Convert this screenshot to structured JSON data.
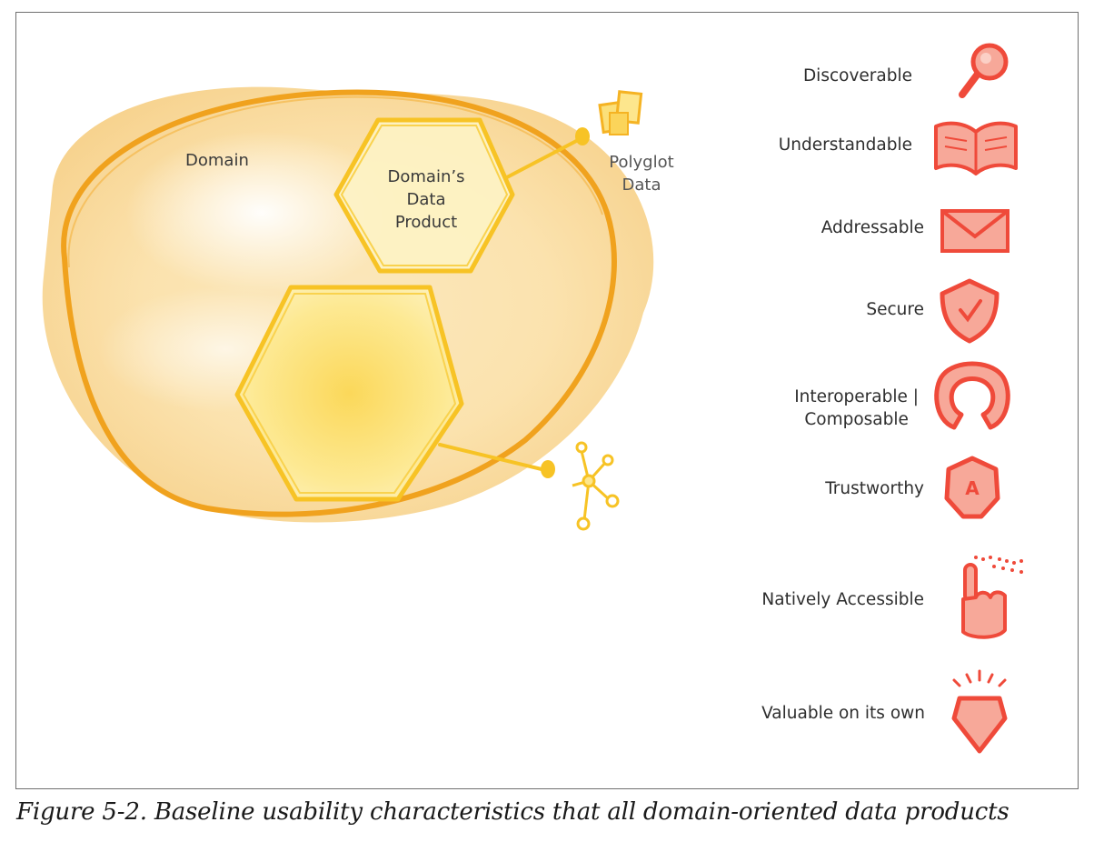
{
  "diagram": {
    "domain_label": "Domain",
    "product_label": "Domain’s\nData\nProduct",
    "polyglot_label": "Polyglot\nData"
  },
  "characteristics": [
    {
      "label": "Discoverable",
      "icon": "magnifier-icon"
    },
    {
      "label": "Understandable",
      "icon": "open-book-icon"
    },
    {
      "label": "Addressable",
      "icon": "envelope-icon"
    },
    {
      "label": "Secure",
      "icon": "shield-check-icon"
    },
    {
      "label": "Interoperable |\nComposable",
      "icon": "horseshoe-icon"
    },
    {
      "label": "Trustworthy",
      "icon": "badge-a-icon"
    },
    {
      "label": "Natively Accessible",
      "icon": "pointing-hand-icon"
    },
    {
      "label": "Valuable on its own",
      "icon": "gem-icon"
    }
  ],
  "caption": "Figure 5-2. Baseline usability characteristics that all domain-oriented data products",
  "colors": {
    "domain_fill": "#f9d99a",
    "domain_stroke": "#f0a21e",
    "hexagon_stroke": "#f7c325",
    "hexagon_fill": "#fbe37a",
    "icon_red": "#ef4a3a",
    "icon_fill": "#f7a899",
    "frame": "#6f6f6f"
  }
}
